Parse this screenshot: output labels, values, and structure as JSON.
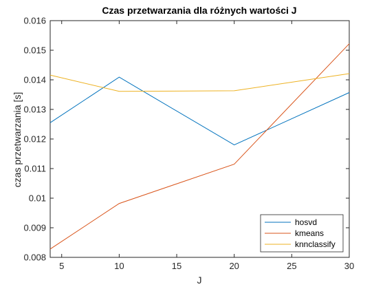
{
  "chart_data": {
    "type": "line",
    "title": "Czas przetwarzania dla różnych wartości J",
    "xlabel": "J",
    "ylabel": "czas przetwarzania [s]",
    "xlim": [
      4,
      30
    ],
    "ylim": [
      0.008,
      0.016
    ],
    "x_ticks": [
      "5",
      "10",
      "15",
      "20",
      "25",
      "30"
    ],
    "y_ticks": [
      "0.008",
      "0.009",
      "0.01",
      "0.011",
      "0.012",
      "0.013",
      "0.014",
      "0.015",
      "0.016"
    ],
    "grid": false,
    "legend_position": "bottom-right",
    "series": [
      {
        "name": "hosvd",
        "color": "#0072BD",
        "x": [
          4,
          10,
          20,
          30
        ],
        "y": [
          0.01255,
          0.01409,
          0.0118,
          0.01357
        ]
      },
      {
        "name": "kmeans",
        "color": "#D95319",
        "x": [
          4,
          10,
          20,
          30
        ],
        "y": [
          0.00828,
          0.00982,
          0.01115,
          0.01522
        ]
      },
      {
        "name": "knnclassify",
        "color": "#EDB120",
        "x": [
          4,
          10,
          20,
          30
        ],
        "y": [
          0.01416,
          0.01361,
          0.01363,
          0.01421
        ]
      }
    ]
  }
}
